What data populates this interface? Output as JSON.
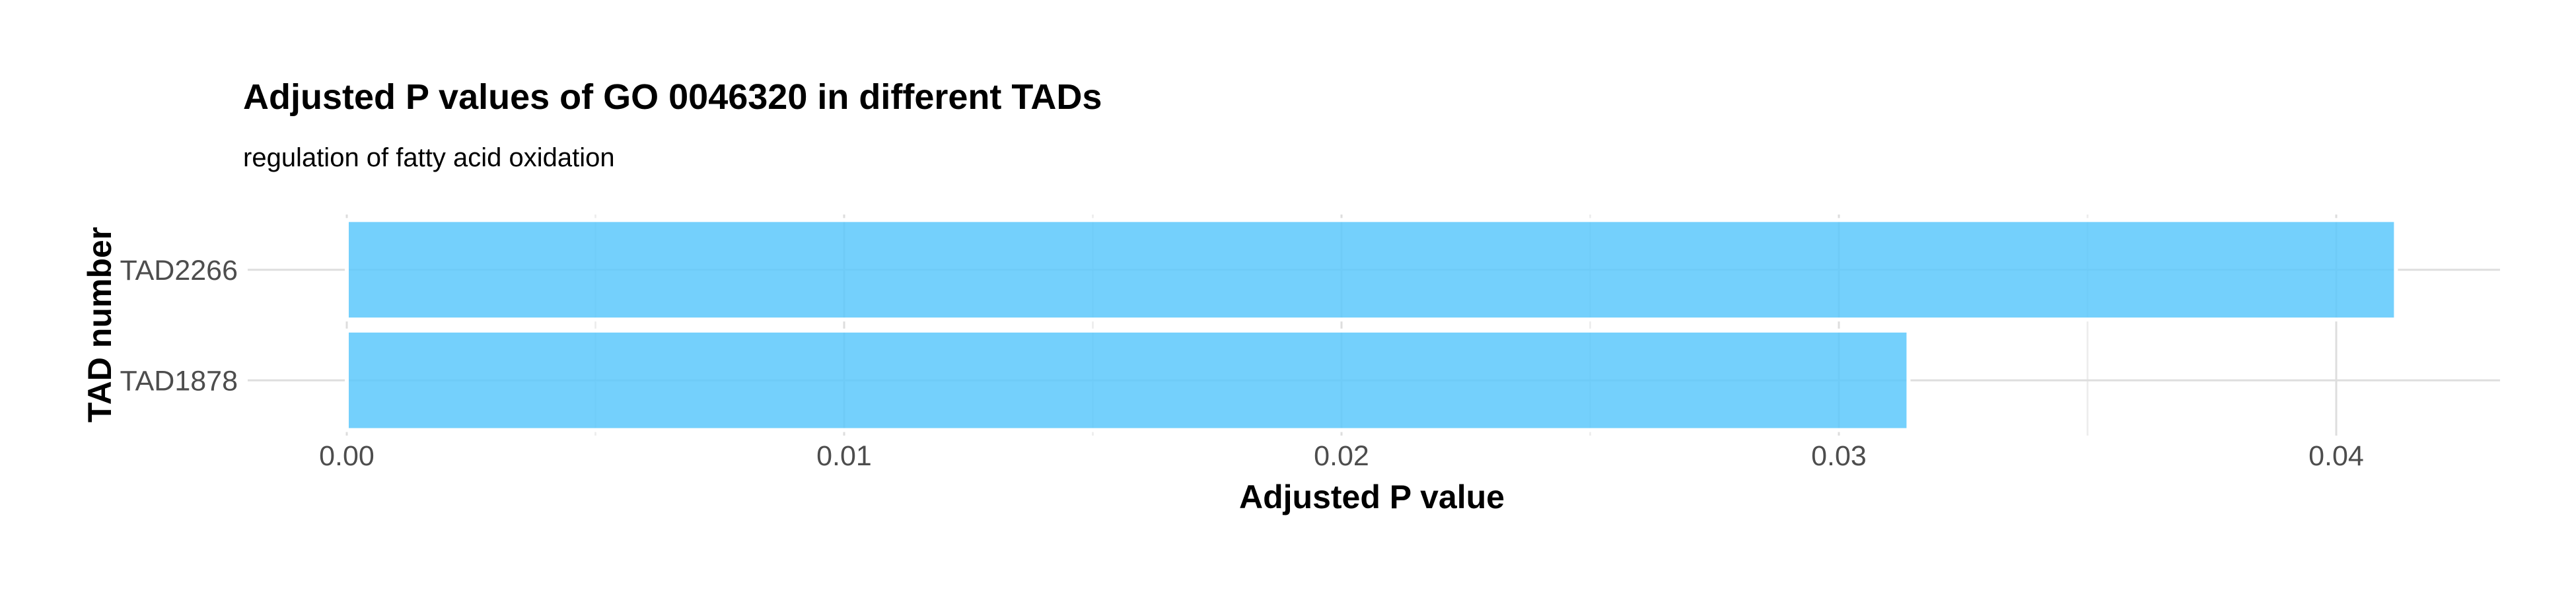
{
  "chart_data": {
    "type": "bar",
    "orientation": "horizontal",
    "title": "Adjusted P values of GO 0046320 in different TADs",
    "subtitle": "regulation of fatty acid oxidation",
    "xlabel": "Adjusted P value",
    "ylabel": "TAD number",
    "categories": [
      "TAD2266",
      "TAD1878"
    ],
    "values": [
      0.0412,
      0.0314
    ],
    "xlim": [
      0,
      0.0432
    ],
    "xticks": [
      0.0,
      0.01,
      0.02,
      0.03,
      0.04
    ],
    "xtick_labels": [
      "0.00",
      "0.01",
      "0.02",
      "0.03",
      "0.04"
    ],
    "bar_color": "#5cc8fb",
    "grid": true,
    "legend": "none"
  }
}
